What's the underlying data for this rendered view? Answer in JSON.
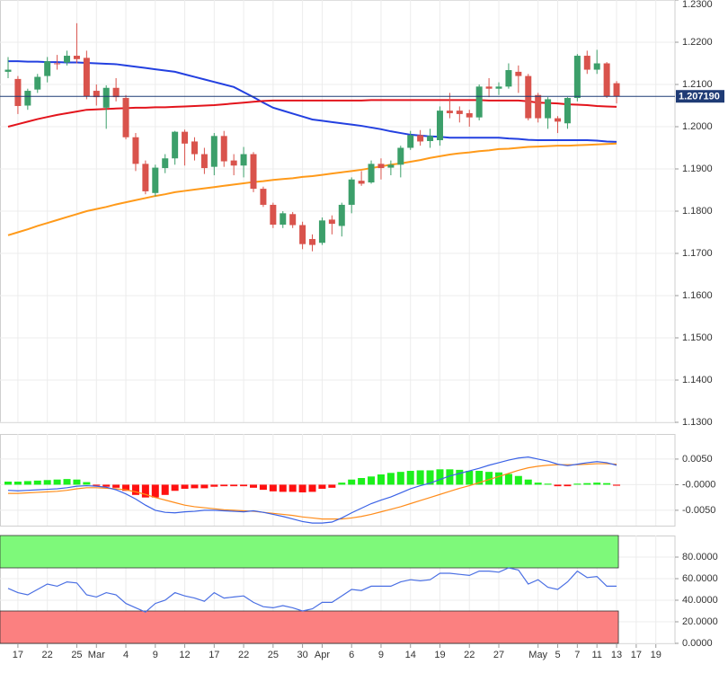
{
  "chart_data": [
    {
      "type": "candlestick",
      "categories": [
        null,
        "17",
        null,
        null,
        "22",
        null,
        null,
        "25",
        null,
        "Mar",
        null,
        null,
        "4",
        null,
        null,
        "9",
        null,
        null,
        "12",
        null,
        null,
        "17",
        null,
        null,
        "22",
        null,
        null,
        "25",
        null,
        null,
        "30",
        null,
        "Apr",
        null,
        null,
        "6",
        null,
        null,
        "9",
        null,
        null,
        "14",
        null,
        null,
        "19",
        null,
        null,
        "22",
        null,
        null,
        "27",
        null,
        null,
        null,
        "May",
        null,
        "5",
        null,
        "7",
        null,
        "11",
        null,
        "13",
        null,
        "17",
        null,
        "19",
        null
      ],
      "open": [
        1.213,
        1.2113,
        1.205,
        1.2088,
        1.212,
        1.215,
        1.2152,
        1.2168,
        1.2163,
        1.2085,
        1.2045,
        1.2092,
        1.2068,
        1.1975,
        1.1912,
        1.1843,
        1.1902,
        1.1925,
        1.1988,
        1.1965,
        1.1935,
        1.1905,
        1.1978,
        1.192,
        1.1908,
        1.1935,
        1.1853,
        1.1815,
        1.1768,
        1.1793,
        1.1767,
        1.1734,
        1.1725,
        1.178,
        1.1765,
        1.1815,
        1.1872,
        1.1868,
        1.1912,
        1.1903,
        1.191,
        1.195,
        1.198,
        1.1966,
        1.1968,
        1.2038,
        1.2038,
        1.2032,
        1.2022,
        1.2095,
        1.209,
        1.2095,
        1.213,
        1.212,
        1.2075,
        1.202,
        1.202,
        1.2008,
        1.2068,
        1.2168,
        1.2135,
        1.215,
        1.2103,
        null,
        null,
        null,
        null,
        null
      ],
      "high": [
        1.2165,
        1.212,
        1.209,
        1.2125,
        1.2165,
        1.217,
        1.218,
        1.2245,
        1.218,
        1.21,
        1.2098,
        1.2115,
        1.2075,
        1.1985,
        1.192,
        1.191,
        1.1935,
        1.199,
        1.1993,
        1.1975,
        1.195,
        1.1985,
        1.199,
        1.1935,
        1.1952,
        1.194,
        1.1858,
        1.182,
        1.18,
        1.1798,
        1.1775,
        1.1745,
        1.1785,
        1.179,
        1.182,
        1.188,
        1.1895,
        1.192,
        1.1925,
        1.192,
        1.1955,
        1.199,
        1.1992,
        1.1995,
        1.2048,
        1.208,
        1.2048,
        1.204,
        1.21,
        1.2115,
        1.2105,
        1.215,
        1.2145,
        1.2125,
        1.208,
        1.207,
        1.2025,
        1.207,
        1.2172,
        1.218,
        1.2182,
        1.2153,
        1.2108,
        null,
        null,
        null,
        null,
        null
      ],
      "low": [
        1.2115,
        1.203,
        1.204,
        1.208,
        1.2105,
        1.2135,
        1.2145,
        1.215,
        1.2065,
        1.205,
        1.1995,
        1.206,
        1.197,
        1.1895,
        1.184,
        1.1835,
        1.189,
        1.191,
        1.1908,
        1.192,
        1.1888,
        1.1885,
        1.1905,
        1.1885,
        1.188,
        1.1845,
        1.181,
        1.176,
        1.176,
        1.176,
        1.171,
        1.1705,
        1.172,
        1.1745,
        1.174,
        1.1795,
        1.186,
        1.1865,
        1.1875,
        1.1885,
        1.188,
        1.1945,
        1.1955,
        1.195,
        1.1955,
        1.202,
        1.201,
        1.2,
        1.2015,
        1.207,
        1.2075,
        1.209,
        1.208,
        1.2015,
        1.201,
        1.1995,
        1.1985,
        1.1995,
        1.206,
        1.2125,
        1.2125,
        1.2068,
        1.2055,
        null,
        null,
        null,
        null,
        null
      ],
      "close": [
        1.2135,
        1.2049,
        1.2085,
        1.2118,
        1.2155,
        1.2148,
        1.2168,
        1.216,
        1.2072,
        1.207,
        1.2092,
        1.207,
        1.1975,
        1.1912,
        1.1847,
        1.1903,
        1.1925,
        1.1988,
        1.196,
        1.1935,
        1.1902,
        1.1978,
        1.1918,
        1.1908,
        1.1935,
        1.1853,
        1.1815,
        1.1768,
        1.1795,
        1.1767,
        1.1722,
        1.172,
        1.1778,
        1.177,
        1.1815,
        1.1875,
        1.1865,
        1.1912,
        1.1902,
        1.191,
        1.195,
        1.198,
        1.1965,
        1.1978,
        1.2038,
        1.2032,
        1.203,
        1.2022,
        1.2095,
        1.209,
        1.2095,
        1.2134,
        1.212,
        1.202,
        1.202,
        1.2065,
        1.2012,
        1.2068,
        1.2168,
        1.2135,
        1.215,
        1.2072,
        1.20719,
        null,
        null,
        null,
        null,
        null
      ],
      "up_color": "#3c9f6a",
      "down_color": "#d9534c",
      "lines": [
        {
          "color": "#2340e0",
          "values": [
            1.2155,
            1.2155,
            1.2154,
            1.2154,
            1.2153,
            1.2153,
            1.2152,
            1.2152,
            1.2151,
            1.215,
            1.2149,
            1.2148,
            1.2145,
            1.2142,
            1.2139,
            1.2136,
            1.2133,
            1.213,
            1.2124,
            1.2118,
            1.2112,
            1.2106,
            1.21,
            1.2094,
            1.2082,
            1.207,
            1.2057,
            1.2045,
            1.2038,
            1.2031,
            1.2024,
            1.2017,
            1.2014,
            1.2011,
            1.2008,
            1.2005,
            1.2002,
            1.1998,
            1.1994,
            1.1989,
            1.1985,
            1.1981,
            1.1979,
            1.1977,
            1.1976,
            1.1974,
            1.1974,
            1.1974,
            1.1974,
            1.1974,
            1.1974,
            1.1972,
            1.1971,
            1.1969,
            1.1968,
            1.1968,
            1.1968,
            1.1968,
            1.1968,
            1.1968,
            1.1967,
            1.1965,
            1.1964,
            null,
            null,
            null,
            null,
            null
          ]
        },
        {
          "color": "#e3141c",
          "values": [
            1.2,
            1.2006,
            1.2012,
            1.2018,
            1.2023,
            1.2028,
            1.2032,
            1.2036,
            1.204,
            1.2041,
            1.2042,
            1.2043,
            1.2044,
            1.2045,
            1.2045,
            1.2046,
            1.2046,
            1.2047,
            1.2048,
            1.2049,
            1.205,
            1.2051,
            1.2053,
            1.2055,
            1.2057,
            1.2059,
            1.2061,
            1.2062,
            1.2062,
            1.2062,
            1.2062,
            1.2062,
            1.2062,
            1.2062,
            1.2062,
            1.2062,
            1.2062,
            1.2063,
            1.2063,
            1.2063,
            1.2063,
            1.2063,
            1.2063,
            1.2063,
            1.2063,
            1.2063,
            1.2063,
            1.2063,
            1.2063,
            1.2062,
            1.2062,
            1.2062,
            1.2062,
            1.206,
            1.2057,
            1.2056,
            1.2055,
            1.2053,
            1.2052,
            1.2051,
            1.2049,
            1.2048,
            1.2047,
            null,
            null,
            null,
            null,
            null
          ]
        },
        {
          "color": "#ff9a1a",
          "values": [
            1.1743,
            1.175,
            1.1757,
            1.1765,
            1.1772,
            1.1779,
            1.1786,
            1.1793,
            1.18,
            1.1805,
            1.181,
            1.1816,
            1.1821,
            1.1826,
            1.1831,
            1.1836,
            1.184,
            1.1845,
            1.1848,
            1.1851,
            1.1854,
            1.1857,
            1.186,
            1.1863,
            1.1866,
            1.1869,
            1.1871,
            1.1874,
            1.1876,
            1.1878,
            1.1881,
            1.1883,
            1.1886,
            1.1889,
            1.1892,
            1.1895,
            1.1898,
            1.1902,
            1.1906,
            1.191,
            1.1913,
            1.1917,
            1.1921,
            1.1926,
            1.193,
            1.1934,
            1.1937,
            1.1939,
            1.1942,
            1.1944,
            1.1947,
            1.1948,
            1.195,
            1.1952,
            1.1953,
            1.1954,
            1.1955,
            1.1955,
            1.1956,
            1.1957,
            1.1958,
            1.1959,
            1.196,
            null,
            null,
            null,
            null,
            null
          ]
        }
      ],
      "ylim": [
        1.13,
        1.23
      ],
      "yticks": [
        {
          "value": 1.13,
          "label": "1.1300"
        },
        {
          "value": 1.14,
          "label": "1.1400"
        },
        {
          "value": 1.15,
          "label": "1.1500"
        },
        {
          "value": 1.16,
          "label": "1.1600"
        },
        {
          "value": 1.17,
          "label": "1.1700"
        },
        {
          "value": 1.18,
          "label": "1.1800"
        },
        {
          "value": 1.19,
          "label": "1.1900"
        },
        {
          "value": 1.2,
          "label": "1.2000"
        },
        {
          "value": 1.21,
          "label": "1.2100"
        },
        {
          "value": 1.22,
          "label": "1.2200"
        },
        {
          "value": 1.23,
          "label": "1.2300"
        }
      ],
      "last_price": {
        "value": 1.20719,
        "label": "1.207190"
      },
      "last_price_color": "#1f3b75",
      "grid": true
    },
    {
      "type": "macd",
      "histogram": [
        0.0006,
        0.0006,
        0.0007,
        0.0008,
        0.0009,
        0.001,
        0.0011,
        0.001,
        0.0005,
        -0.0002,
        -0.0004,
        -0.0006,
        -0.0012,
        -0.002,
        -0.0025,
        -0.0025,
        -0.002,
        -0.0012,
        -0.0008,
        -0.0007,
        -0.0007,
        -0.0004,
        -0.0003,
        -0.0003,
        -0.0003,
        -0.0006,
        -0.001,
        -0.0013,
        -0.0014,
        -0.0014,
        -0.0015,
        -0.0014,
        -0.0008,
        -0.0006,
        0.0004,
        0.001,
        0.0013,
        0.0016,
        0.002,
        0.0023,
        0.0025,
        0.0027,
        0.0028,
        0.0028,
        0.003,
        0.003,
        0.0029,
        0.0027,
        0.0027,
        0.0025,
        0.0024,
        0.0021,
        0.0017,
        0.001,
        0.0004,
        0.0002,
        -0.0003,
        -0.0003,
        0.0002,
        0.0003,
        0.0004,
        0.0003,
        -0.0002,
        null,
        null,
        null,
        null,
        null
      ],
      "macd": [
        -0.0011,
        -0.0012,
        -0.0011,
        -0.001,
        -0.0009,
        -0.0008,
        -0.0006,
        -0.0003,
        -0.0002,
        -0.0003,
        -0.0005,
        -0.001,
        -0.0018,
        -0.0028,
        -0.004,
        -0.005,
        -0.0054,
        -0.0055,
        -0.0053,
        -0.0052,
        -0.005,
        -0.005,
        -0.0051,
        -0.0052,
        -0.0053,
        -0.0051,
        -0.0054,
        -0.0058,
        -0.0062,
        -0.0067,
        -0.0072,
        -0.0075,
        -0.0075,
        -0.0073,
        -0.0065,
        -0.0055,
        -0.0046,
        -0.0037,
        -0.003,
        -0.0024,
        -0.0016,
        -0.0008,
        -0.0002,
        0.0003,
        0.001,
        0.0017,
        0.0022,
        0.0027,
        0.0032,
        0.0038,
        0.0043,
        0.0048,
        0.0052,
        0.0054,
        0.005,
        0.0046,
        0.004,
        0.0037,
        0.004,
        0.0043,
        0.0045,
        0.0043,
        0.0038,
        null,
        null,
        null,
        null,
        null
      ],
      "signal": [
        -0.0017,
        -0.0017,
        -0.0016,
        -0.0015,
        -0.0014,
        -0.0013,
        -0.0011,
        -0.0008,
        -0.0006,
        -0.0006,
        -0.0007,
        -0.0008,
        -0.001,
        -0.0014,
        -0.0019,
        -0.0025,
        -0.003,
        -0.0035,
        -0.004,
        -0.0043,
        -0.0045,
        -0.0047,
        -0.0049,
        -0.005,
        -0.0051,
        -0.0052,
        -0.0054,
        -0.0056,
        -0.0058,
        -0.006,
        -0.0063,
        -0.0065,
        -0.0067,
        -0.0067,
        -0.0067,
        -0.0065,
        -0.0062,
        -0.0058,
        -0.0053,
        -0.0048,
        -0.0043,
        -0.0037,
        -0.0031,
        -0.0025,
        -0.0019,
        -0.0013,
        -0.0007,
        -0.0002,
        0.0004,
        0.001,
        0.0016,
        0.0022,
        0.0028,
        0.0033,
        0.0036,
        0.0038,
        0.0039,
        0.0039,
        0.0039,
        0.004,
        0.0041,
        0.0041,
        0.004,
        null,
        null,
        null,
        null,
        null
      ],
      "up_color": "#1cf01c",
      "down_color": "#ff1010",
      "macd_color": "#3a62e6",
      "signal_color": "#ff8c1a",
      "ylim": [
        -0.008,
        0.0099
      ],
      "yticks": [
        {
          "value": -0.005,
          "label": "-0.0050"
        },
        {
          "value": 0,
          "label": "-0.0000"
        },
        {
          "value": 0.005,
          "label": "0.0050"
        }
      ]
    },
    {
      "type": "rsi",
      "values": [
        51,
        47,
        45,
        50,
        55,
        53,
        57,
        56,
        45,
        43,
        47,
        45,
        37,
        33,
        29,
        37,
        40,
        47,
        44,
        42,
        39,
        47,
        42,
        43,
        44,
        38,
        34,
        33,
        35,
        33,
        30,
        32,
        38,
        38,
        44,
        50,
        49,
        53,
        53,
        53,
        57,
        59,
        58,
        59,
        65,
        65,
        64,
        63,
        67,
        67,
        66,
        70,
        68,
        55,
        59,
        52,
        50,
        57,
        67,
        61,
        62,
        53,
        53,
        null,
        null,
        null,
        null,
        null
      ],
      "color": "#4a6fe3",
      "overbought": 70,
      "oversold": 30,
      "overbought_color": "#7ef97a",
      "oversold_color": "#fb8080",
      "ylim": [
        0,
        100
      ],
      "yticks": [
        {
          "value": 0,
          "label": "0.0000"
        },
        {
          "value": 20,
          "label": "20.0000"
        },
        {
          "value": 40,
          "label": "40.0000"
        },
        {
          "value": 60,
          "label": "60.0000"
        },
        {
          "value": 80,
          "label": "80.0000"
        }
      ]
    }
  ]
}
